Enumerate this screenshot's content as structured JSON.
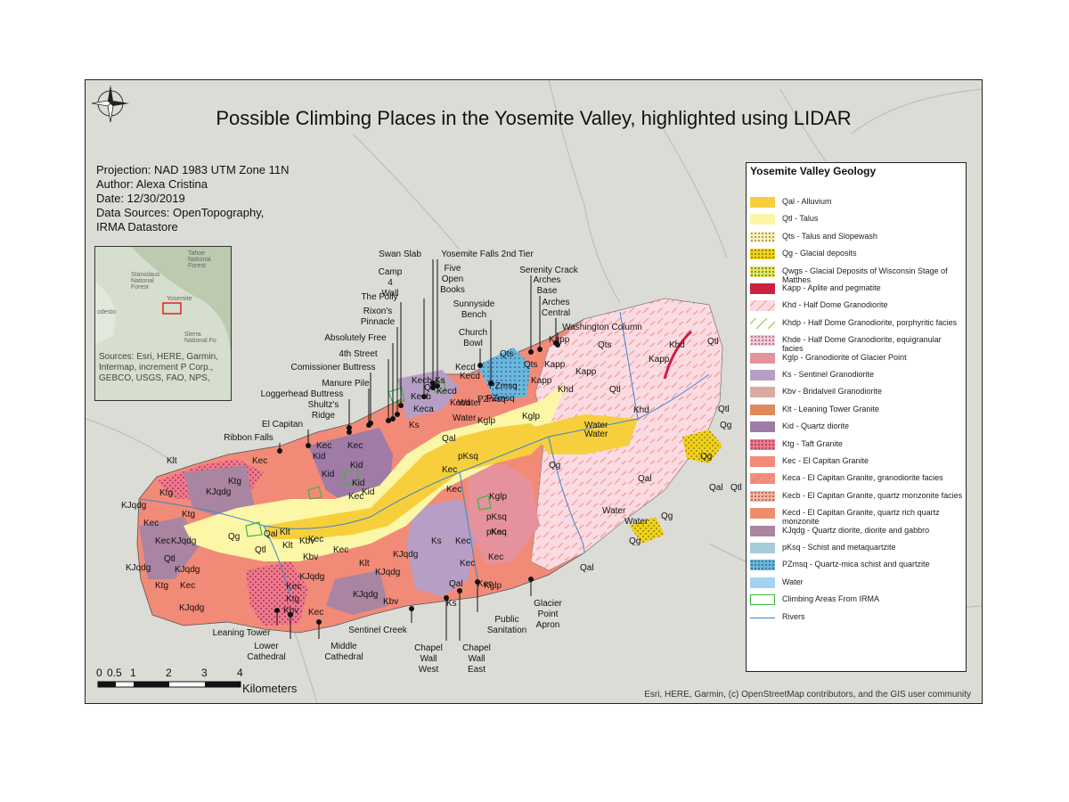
{
  "title": "Possible Climbing Places in the Yosemite Valley, highlighted using LIDAR",
  "info": {
    "projection": "Projection: NAD 1983 UTM Zone 11N",
    "author": "Author: Alexa Cristina",
    "date": "Date: 12/30/2019",
    "sources_1": "Data Sources: OpenTopography,",
    "sources_2": "IRMA Datastore"
  },
  "inset": {
    "sources": "Sources: Esri, HERE, Garmin, Intermap, increment P Corp., GEBCO, USGS, FAO, NPS,",
    "place_labels": [
      "Tahoe National Forest",
      "Stanislaus National Forest",
      "Yosemite",
      "odesto",
      "Sierra National Fo"
    ]
  },
  "legend": {
    "title": "Yosemite Valley Geology",
    "items": [
      {
        "label": "Qal - Alluvium",
        "color": "#f7cf3d",
        "pattern": "solid"
      },
      {
        "label": "Qtl - Talus",
        "color": "#fbf7a6",
        "pattern": "solid"
      },
      {
        "label": "Qts - Talus and Slopewash",
        "color": "#fdf2b6",
        "pattern": "dots"
      },
      {
        "label": "Qg - Glacial deposits",
        "color": "#f1d21a",
        "pattern": "dots"
      },
      {
        "label": "Qwgs - Glacial Deposits of Wisconsin Stage of Matthes",
        "color": "#f0e060",
        "pattern": "dots-green"
      },
      {
        "label": "Kapp - Aplite and pegmatite",
        "color": "#cc2042",
        "pattern": "solid"
      },
      {
        "label": "Khd - Half Dome Granodiorite",
        "color": "#fbdbe3",
        "pattern": "dashes"
      },
      {
        "label": "Khdp - Half Dome Granodiorite, porphyritic facies",
        "color": "#ffffff",
        "pattern": "dashes-green"
      },
      {
        "label": "Khde - Half Dome Granodiorite, equigranular facies",
        "color": "#f9c9d6",
        "pattern": "dots"
      },
      {
        "label": "Kglp - Granodiorite of Glacier Point",
        "color": "#e6929c",
        "pattern": "solid"
      },
      {
        "label": "Ks - Sentinel Granodiorite",
        "color": "#b79ec5",
        "pattern": "solid"
      },
      {
        "label": "Kbv - Bridalveil Granodiorite",
        "color": "#dcaaa2",
        "pattern": "solid"
      },
      {
        "label": "Klt - Leaning Tower Granite",
        "color": "#df8a5b",
        "pattern": "solid"
      },
      {
        "label": "Kid - Quartz diorite",
        "color": "#9f7ba6",
        "pattern": "solid"
      },
      {
        "label": "Ktg - Taft Granite",
        "color": "#f0788e",
        "pattern": "dots"
      },
      {
        "label": "Kec - El Capitan Granite",
        "color": "#f28a78",
        "pattern": "solid"
      },
      {
        "label": "Keca - El Capitan Granite, granodiorite facies",
        "color": "#f28a78",
        "pattern": "dashes"
      },
      {
        "label": "Kecb - El Capitan Granite, quartz monzonite facies",
        "color": "#f8b39e",
        "pattern": "dots"
      },
      {
        "label": "Kecd - El Capitan Granite, quartz rich quartz monzonite",
        "color": "#ee8d6c",
        "pattern": "solid"
      },
      {
        "label": "KJqdg - Quartz diorite, diorite and gabbro",
        "color": "#a985a2",
        "pattern": "solid"
      },
      {
        "label": "pKsq - Schist and metaquartzite",
        "color": "#a7cbd9",
        "pattern": "solid"
      },
      {
        "label": "PZmsq - Quartz-mica schist and quartzite",
        "color": "#6bb7dc",
        "pattern": "dots"
      },
      {
        "label": "Water",
        "color": "#a2d3f2",
        "pattern": "solid"
      },
      {
        "label": "Climbing Areas From IRMA",
        "color": "#ffffff",
        "pattern": "outline-green"
      },
      {
        "label": "Rivers",
        "color": "#3a86c8",
        "pattern": "line"
      }
    ]
  },
  "scale": {
    "ticks": [
      "0",
      "0.5",
      "1",
      "2",
      "3",
      "4"
    ],
    "tick_values_km": [
      0,
      0.5,
      1,
      2,
      3,
      4
    ],
    "unit": "Kilometers"
  },
  "attribution": "Esri, HERE, Garmin, (c) OpenStreetMap contributors, and the GIS user community",
  "climbing_places": [
    "Swan Slab",
    "Yosemite Falls 2nd Tier",
    "Camp 4 Wall",
    "Five Open Books",
    "Serenity Crack",
    "Arches Base",
    "Arches Central",
    "The Folly",
    "Sunnyside Bench",
    "Rixon's Pinnacle",
    "Washington Column",
    "Absolutely Free",
    "Church Bowl",
    "4th Street",
    "Comissioner Buttress",
    "Manure Pile",
    "Loggerhead Buttress",
    "Shultz's Ridge",
    "El Capitan",
    "Ribbon Falls",
    "Leaning Tower",
    "Lower Cathedral",
    "Middle Cathedral",
    "Sentinel Creek",
    "Chapel Wall West",
    "Chapel Wall East",
    "Public Sanitation",
    "Glacier Point Apron"
  ],
  "unit_labels": [
    "Qal",
    "Qtl",
    "Qts",
    "Qg",
    "Kapp",
    "Khd",
    "Kglp",
    "Ks",
    "Kbv",
    "Klt",
    "Kid",
    "Ktg",
    "Kec",
    "Keca",
    "Kecb",
    "Kecd",
    "KJqdg",
    "pKsq",
    "PZmsq",
    "Water"
  ]
}
